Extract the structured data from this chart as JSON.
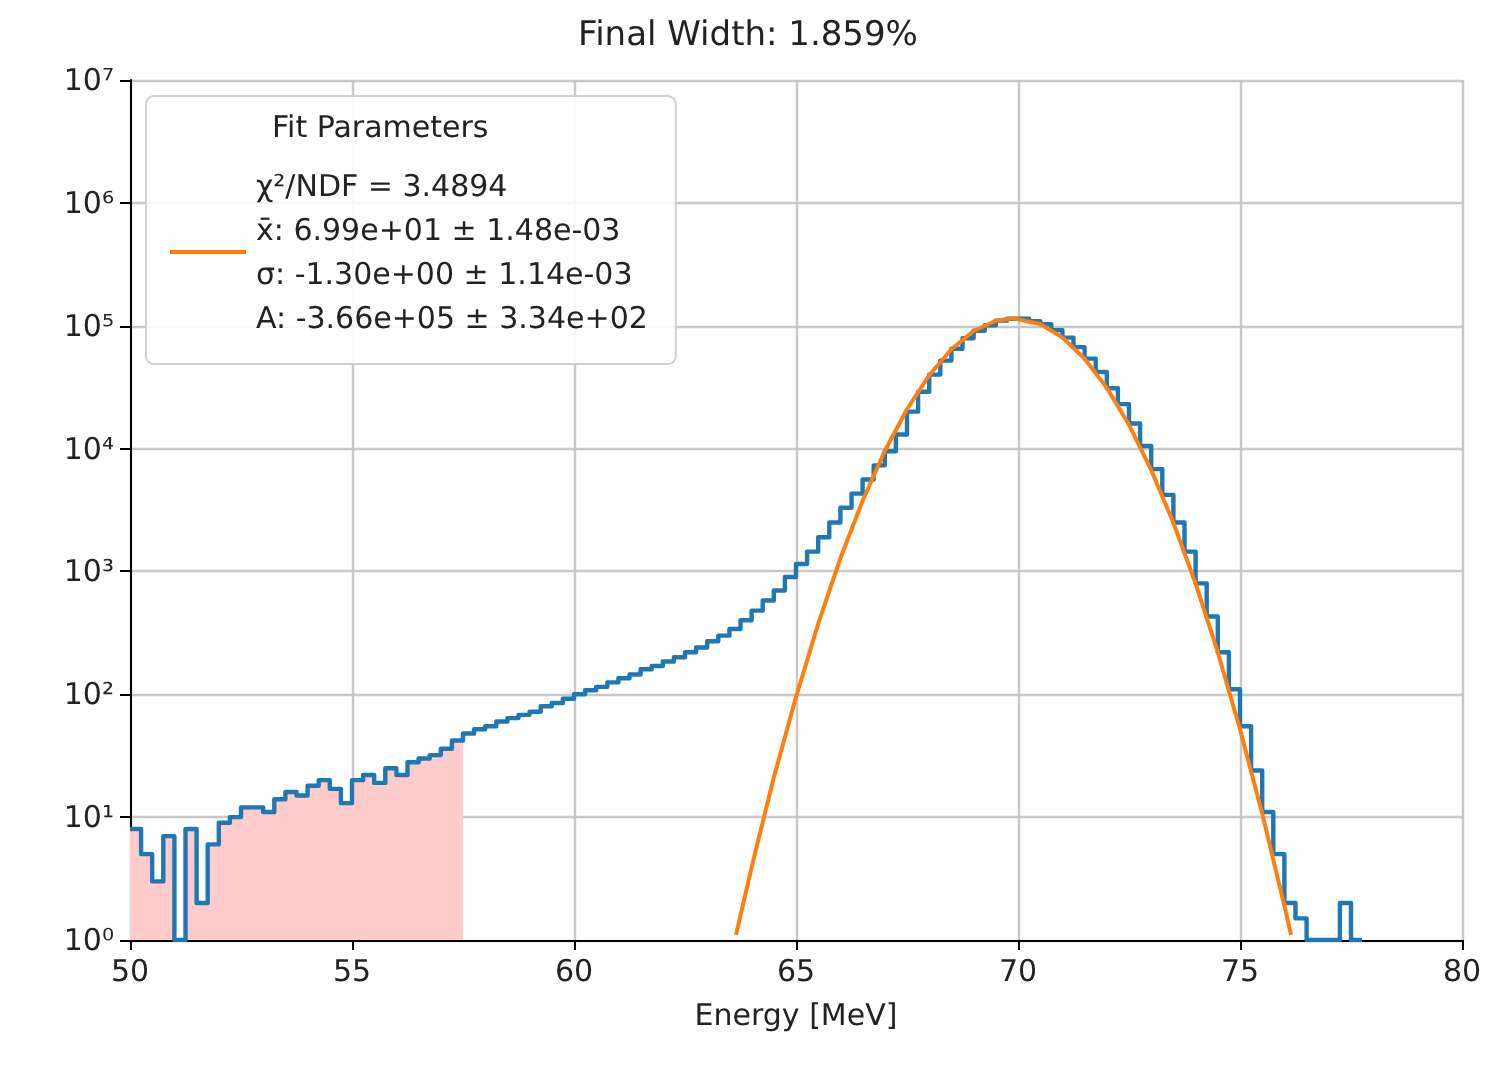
{
  "chart_data": {
    "type": "histogram",
    "title": "Final Width: 1.859%",
    "xlabel": "Energy [MeV]",
    "legend_title": "Fit Parameters",
    "xlim": [
      50,
      80
    ],
    "xticks": [
      50,
      55,
      60,
      65,
      70,
      75,
      80
    ],
    "ylim": [
      1,
      10000000
    ],
    "yticks": [
      {
        "value": 1,
        "label": "10⁰"
      },
      {
        "value": 10,
        "label": "10¹"
      },
      {
        "value": 100,
        "label": "10²"
      },
      {
        "value": 1000,
        "label": "10³"
      },
      {
        "value": 10000,
        "label": "10⁴"
      },
      {
        "value": 100000,
        "label": "10⁵"
      },
      {
        "value": 1000000,
        "label": "10⁶"
      },
      {
        "value": 10000000,
        "label": "10⁷"
      }
    ],
    "log": "y",
    "grid": true,
    "legend": "top left",
    "marker": "none",
    "series": [
      {
        "type": "area",
        "color": "#ffcbcb",
        "x": [
          50,
          50.25,
          50.5,
          50.75,
          51,
          51.25,
          51.5,
          51.75,
          52,
          52.25,
          52.5,
          52.75,
          53,
          53.25,
          53.5,
          53.75,
          54,
          54.25,
          54.5,
          54.75,
          55,
          55.25,
          55.5,
          55.75,
          56,
          56.25,
          56.5,
          56.75,
          57,
          57.25,
          57.5
        ],
        "values": [
          8,
          5,
          3,
          7,
          1,
          8,
          2,
          6,
          9,
          10,
          12,
          12,
          11,
          14,
          16,
          15,
          18,
          20,
          17,
          13,
          20,
          22,
          19,
          25,
          22,
          28,
          30,
          32,
          36,
          42,
          42
        ]
      },
      {
        "color": "#1f77b4",
        "bins": [
          50,
          50.25,
          50.5,
          50.75,
          51,
          51.25,
          51.5,
          51.75,
          52,
          52.25,
          52.5,
          52.75,
          53,
          53.25,
          53.5,
          53.75,
          54,
          54.25,
          54.5,
          54.75,
          55,
          55.25,
          55.5,
          55.75,
          56,
          56.25,
          56.5,
          56.75,
          57,
          57.25,
          57.5,
          57.75,
          58,
          58.25,
          58.5,
          58.75,
          59,
          59.25,
          59.5,
          59.75,
          60,
          60.25,
          60.5,
          60.75,
          61,
          61.25,
          61.5,
          61.75,
          62,
          62.25,
          62.5,
          62.75,
          63,
          63.25,
          63.5,
          63.75,
          64,
          64.25,
          64.5,
          64.75,
          65,
          65.25,
          65.5,
          65.75,
          66,
          66.25,
          66.5,
          66.75,
          67,
          67.25,
          67.5,
          67.75,
          68,
          68.25,
          68.5,
          68.75,
          69,
          69.25,
          69.5,
          69.75,
          70,
          70.25,
          70.5,
          70.75,
          71,
          71.25,
          71.5,
          71.75,
          72,
          72.25,
          72.5,
          72.75,
          73,
          73.25,
          73.5,
          73.75,
          74,
          74.25,
          74.5,
          74.75,
          75,
          75.25,
          75.5,
          75.75,
          76,
          76.25,
          76.5,
          76.75,
          77,
          77.25,
          77.5,
          77.75
        ],
        "values": [
          8,
          5,
          3,
          7,
          1,
          8,
          2,
          6,
          9,
          10,
          12,
          12,
          11,
          14,
          16,
          15,
          18,
          20,
          17,
          13,
          20,
          22,
          19,
          25,
          22,
          28,
          30,
          32,
          36,
          42,
          48,
          52,
          55,
          60,
          64,
          68,
          72,
          80,
          85,
          92,
          100,
          108,
          115,
          125,
          135,
          145,
          160,
          170,
          185,
          200,
          220,
          240,
          270,
          300,
          340,
          400,
          480,
          580,
          700,
          900,
          1150,
          1450,
          1900,
          2500,
          3300,
          4300,
          5600,
          7300,
          9500,
          13000,
          20000,
          29000,
          40000,
          52000,
          65000,
          79000,
          91000,
          101000,
          110000,
          114000,
          114000,
          109000,
          103000,
          92000,
          80000,
          67000,
          54000,
          42000,
          31000,
          23000,
          16000,
          10500,
          6800,
          4200,
          2500,
          1450,
          800,
          430,
          220,
          110,
          55,
          24,
          11,
          5,
          2,
          1.5,
          null,
          null,
          null,
          2,
          null
        ]
      },
      {
        "type": "line",
        "name": "χ²/NDF = 3.4894\nx̄: 6.99e+01 ± 1.48e-03\nσ: -1.30e+00 ± 1.14e-03\nA: -3.66e+05 ± 3.34e+02",
        "color": "#ff7f0e",
        "x": [
          63.65,
          64,
          64.5,
          65,
          65.5,
          66,
          66.5,
          67,
          67.5,
          68,
          68.5,
          69,
          69.5,
          69.9,
          70.5,
          71,
          71.5,
          72,
          72.5,
          73,
          73.5,
          74,
          74.5,
          75,
          75.5,
          76,
          76.15
        ],
        "values": [
          1.1,
          3.9,
          21,
          95,
          374,
          1280,
          3760,
          9550,
          20900,
          39500,
          64400,
          90500,
          109700,
          115000,
          103400,
          80400,
          53900,
          31200,
          15600,
          6700,
          2490,
          796,
          220,
          52,
          10.7,
          1.9,
          1.1
        ]
      }
    ]
  }
}
